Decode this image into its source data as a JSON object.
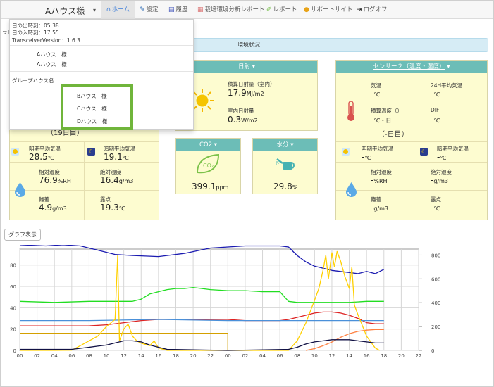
{
  "nav": {
    "house_name": "Aハウス様",
    "items": [
      {
        "label": "ホーム",
        "icon": "home-icon"
      },
      {
        "label": "設定",
        "icon": "wrench-icon"
      },
      {
        "label": "履歴",
        "icon": "history-chart-icon"
      },
      {
        "label": "栽培環境分析レポート",
        "icon": "report-doc-icon"
      },
      {
        "label": "レポート",
        "icon": "pencil-icon"
      },
      {
        "label": "サポートサイト",
        "icon": "question-icon"
      },
      {
        "label": "ログオフ",
        "icon": "logout-icon"
      }
    ]
  },
  "dropdown": {
    "sunrise": "日の出時刻：05:38",
    "sunset": "日の入時刻：17:55",
    "version": "TransceiverVersion：1.6.3",
    "houses": [
      "Aハウス　様",
      "Aハウス　様"
    ],
    "group_label": "グループハウス名",
    "group_houses": [
      "Bハウス　様",
      "Cハウス　様",
      "Dハウス　様"
    ],
    "hidden_text": [
      "ラ日",
      "（19日目）"
    ]
  },
  "status_title": "環境状況",
  "house_panel": {
    "light_avg_label": "明期平均気温",
    "light_avg_value": "28.5",
    "light_avg_unit": "℃",
    "dark_avg_label": "暗期平均気温",
    "dark_avg_value": "19.1",
    "dark_avg_unit": "℃",
    "rh_label": "相対湿度",
    "rh_value": "76.9",
    "rh_unit": "%RH",
    "ah_label": "絶対湿度",
    "ah_value": "16.4",
    "ah_unit": "g/m3",
    "hd_label": "飽差",
    "hd_value": "4.9",
    "hd_unit": "g/m3",
    "dew_label": "露点",
    "dew_value": "19.3",
    "dew_unit": "℃"
  },
  "solar_panel": {
    "title": "日射",
    "cum_label": "積算日射量（室内）",
    "cum_value": "17.9",
    "cum_unit": "MJ/m2",
    "in_label": "室内日射量",
    "in_value": "0.3",
    "in_unit": "W/m2"
  },
  "co2_panel": {
    "title": "CO2",
    "value": "399.1",
    "unit": "ppm",
    "icon_text": "CO₂"
  },
  "water_panel": {
    "title": "水分",
    "value": "29.8",
    "unit": "%"
  },
  "sensor_panel": {
    "title": "センサー２（温度・湿度）",
    "temp_label": "気温",
    "temp_value": "-",
    "temp_unit": "℃",
    "avg24_label": "24H平均気温",
    "avg24_value": "-",
    "avg24_unit": "℃",
    "cum_label": "積算温度（）",
    "cum_value": "-",
    "cum_unit": "℃・日",
    "cum_day": "（-日目）",
    "dif_label": "DIF",
    "dif_value": "-",
    "dif_unit": "℃",
    "light_label": "明期平均気温",
    "light_value": "-",
    "light_unit": "℃",
    "dark_label": "暗期平均気温",
    "dark_value": "-",
    "dark_unit": "℃",
    "rh_label": "相対湿度",
    "rh_value": "-",
    "rh_unit": "%RH",
    "ah_label": "絶対湿度",
    "ah_value": "-",
    "ah_unit": "g/m3",
    "hd_label": "飽差",
    "hd_value": "-",
    "hd_unit": "g/m3",
    "dew_label": "露点",
    "dew_value": "-",
    "dew_unit": "℃"
  },
  "graph_button": "グラフ表示",
  "chart_data": {
    "type": "line",
    "x_ticks": [
      "00",
      "02",
      "04",
      "06",
      "08",
      "10",
      "12",
      "14",
      "16",
      "18",
      "20",
      "22",
      "00",
      "02",
      "04",
      "06",
      "08",
      "10",
      "12",
      "14",
      "16",
      "18",
      "20",
      "22"
    ],
    "y_left_ticks": [
      "0",
      "20",
      "40",
      "60",
      "80"
    ],
    "y_right_ticks": [
      "0",
      "200",
      "400",
      "600",
      "800"
    ],
    "ylim_left": [
      0,
      95
    ],
    "ylim_right": [
      0,
      850
    ],
    "grid": true,
    "series": [
      {
        "color": "#1a1ab0",
        "axis": "left",
        "values": [
          [
            0,
            99
          ],
          [
            3,
            98
          ],
          [
            5,
            99
          ],
          [
            7,
            98
          ],
          [
            9,
            94
          ],
          [
            11,
            90
          ],
          [
            13,
            89
          ],
          [
            16,
            88
          ],
          [
            17,
            89
          ],
          [
            19,
            91
          ],
          [
            22,
            96
          ],
          [
            24,
            97
          ],
          [
            26,
            98
          ],
          [
            28,
            98
          ],
          [
            30,
            98
          ],
          [
            31,
            97
          ],
          [
            32,
            89
          ],
          [
            33,
            83
          ],
          [
            34,
            79
          ],
          [
            35,
            77
          ],
          [
            36,
            75
          ],
          [
            37,
            74
          ],
          [
            38,
            73
          ],
          [
            39,
            72
          ],
          [
            40,
            74
          ],
          [
            41,
            72
          ],
          [
            42,
            76
          ]
        ]
      },
      {
        "color": "#22dd22",
        "axis": "left",
        "values": [
          [
            0,
            46
          ],
          [
            4,
            45
          ],
          [
            8,
            46
          ],
          [
            12,
            46
          ],
          [
            13,
            46
          ],
          [
            14,
            48
          ],
          [
            15,
            53
          ],
          [
            16,
            55
          ],
          [
            17,
            57
          ],
          [
            18,
            58
          ],
          [
            19,
            58
          ],
          [
            20,
            59
          ],
          [
            21,
            58
          ],
          [
            22,
            57
          ],
          [
            24,
            56
          ],
          [
            26,
            56
          ],
          [
            28,
            55
          ],
          [
            30,
            55
          ],
          [
            31,
            46
          ],
          [
            32,
            45
          ],
          [
            34,
            45
          ],
          [
            36,
            45
          ],
          [
            38,
            45
          ],
          [
            40,
            46
          ],
          [
            42,
            46
          ]
        ]
      },
      {
        "color": "#dd2222",
        "axis": "left",
        "values": [
          [
            0,
            23
          ],
          [
            4,
            23
          ],
          [
            8,
            23
          ],
          [
            10,
            24
          ],
          [
            12,
            26
          ],
          [
            13,
            27
          ],
          [
            14,
            28
          ],
          [
            16,
            29
          ],
          [
            18,
            29
          ],
          [
            20,
            29
          ],
          [
            22,
            29
          ],
          [
            24,
            29
          ],
          [
            26,
            28
          ],
          [
            28,
            28
          ],
          [
            30,
            28
          ],
          [
            31,
            29
          ],
          [
            32,
            31
          ],
          [
            33,
            33
          ],
          [
            34,
            35
          ],
          [
            35,
            36
          ],
          [
            36,
            36
          ],
          [
            37,
            35
          ],
          [
            38,
            33
          ],
          [
            39,
            30
          ],
          [
            40,
            26
          ],
          [
            41,
            25
          ],
          [
            42,
            25
          ]
        ]
      },
      {
        "color": "#4a90d9",
        "axis": "left",
        "values": [
          [
            0,
            28
          ],
          [
            8,
            28
          ],
          [
            16,
            29
          ],
          [
            24,
            28
          ],
          [
            30,
            28
          ],
          [
            31,
            28
          ],
          [
            42,
            28
          ]
        ]
      },
      {
        "color": "#d4a000",
        "axis": "left",
        "values": [
          [
            0,
            16
          ],
          [
            2,
            16
          ],
          [
            4,
            16
          ],
          [
            6,
            16
          ],
          [
            8,
            16
          ],
          [
            10,
            16
          ],
          [
            12,
            16
          ],
          [
            14,
            16
          ],
          [
            16,
            16
          ],
          [
            18,
            16
          ],
          [
            20,
            16
          ],
          [
            22,
            16
          ],
          [
            24,
            16
          ],
          [
            24,
            0
          ]
        ]
      },
      {
        "color": "#ff8040",
        "axis": "right",
        "values": [
          [
            33,
            0
          ],
          [
            34,
            15
          ],
          [
            35,
            40
          ],
          [
            36,
            70
          ],
          [
            37,
            110
          ],
          [
            38,
            140
          ],
          [
            39,
            160
          ],
          [
            40,
            170
          ],
          [
            41,
            175
          ],
          [
            42,
            175
          ]
        ]
      },
      {
        "color": "#ffd000",
        "axis": "right",
        "values": [
          [
            0,
            0
          ],
          [
            2,
            0
          ],
          [
            4,
            0
          ],
          [
            6,
            2
          ],
          [
            7,
            40
          ],
          [
            8,
            80
          ],
          [
            9,
            120
          ],
          [
            10,
            200
          ],
          [
            11,
            260
          ],
          [
            11.3,
            800
          ],
          [
            11.5,
            80
          ],
          [
            12,
            180
          ],
          [
            12.5,
            220
          ],
          [
            13,
            120
          ],
          [
            13.5,
            80
          ],
          [
            14,
            60
          ],
          [
            15,
            40
          ],
          [
            15.5,
            80
          ],
          [
            16,
            20
          ],
          [
            17,
            0
          ],
          [
            24,
            0
          ],
          [
            31,
            0
          ],
          [
            32,
            80
          ],
          [
            33,
            230
          ],
          [
            34,
            420
          ],
          [
            34.5,
            520
          ],
          [
            35,
            680
          ],
          [
            35.3,
            800
          ],
          [
            35.6,
            600
          ],
          [
            36,
            820
          ],
          [
            36.3,
            700
          ],
          [
            36.6,
            830
          ],
          [
            37,
            750
          ],
          [
            37.5,
            620
          ],
          [
            38,
            520
          ],
          [
            38.3,
            700
          ],
          [
            38.6,
            380
          ],
          [
            39,
            300
          ],
          [
            40,
            120
          ],
          [
            41,
            20
          ],
          [
            41.5,
            0
          ]
        ]
      },
      {
        "color": "#111144",
        "axis": "left",
        "values": [
          [
            0,
            1
          ],
          [
            6,
            1
          ],
          [
            7,
            2
          ],
          [
            8,
            3
          ],
          [
            9,
            4
          ],
          [
            10,
            5
          ],
          [
            11,
            7
          ],
          [
            12,
            9
          ],
          [
            13,
            9
          ],
          [
            14,
            8
          ],
          [
            15,
            5
          ],
          [
            16,
            3
          ],
          [
            17,
            1
          ],
          [
            24,
            0
          ],
          [
            31,
            1
          ],
          [
            32,
            3
          ],
          [
            33,
            6
          ],
          [
            34,
            8
          ],
          [
            35,
            9
          ],
          [
            36,
            10
          ],
          [
            37,
            10
          ],
          [
            38,
            10
          ],
          [
            39,
            9
          ],
          [
            40,
            8
          ],
          [
            41,
            7
          ],
          [
            42,
            7
          ]
        ]
      }
    ]
  }
}
